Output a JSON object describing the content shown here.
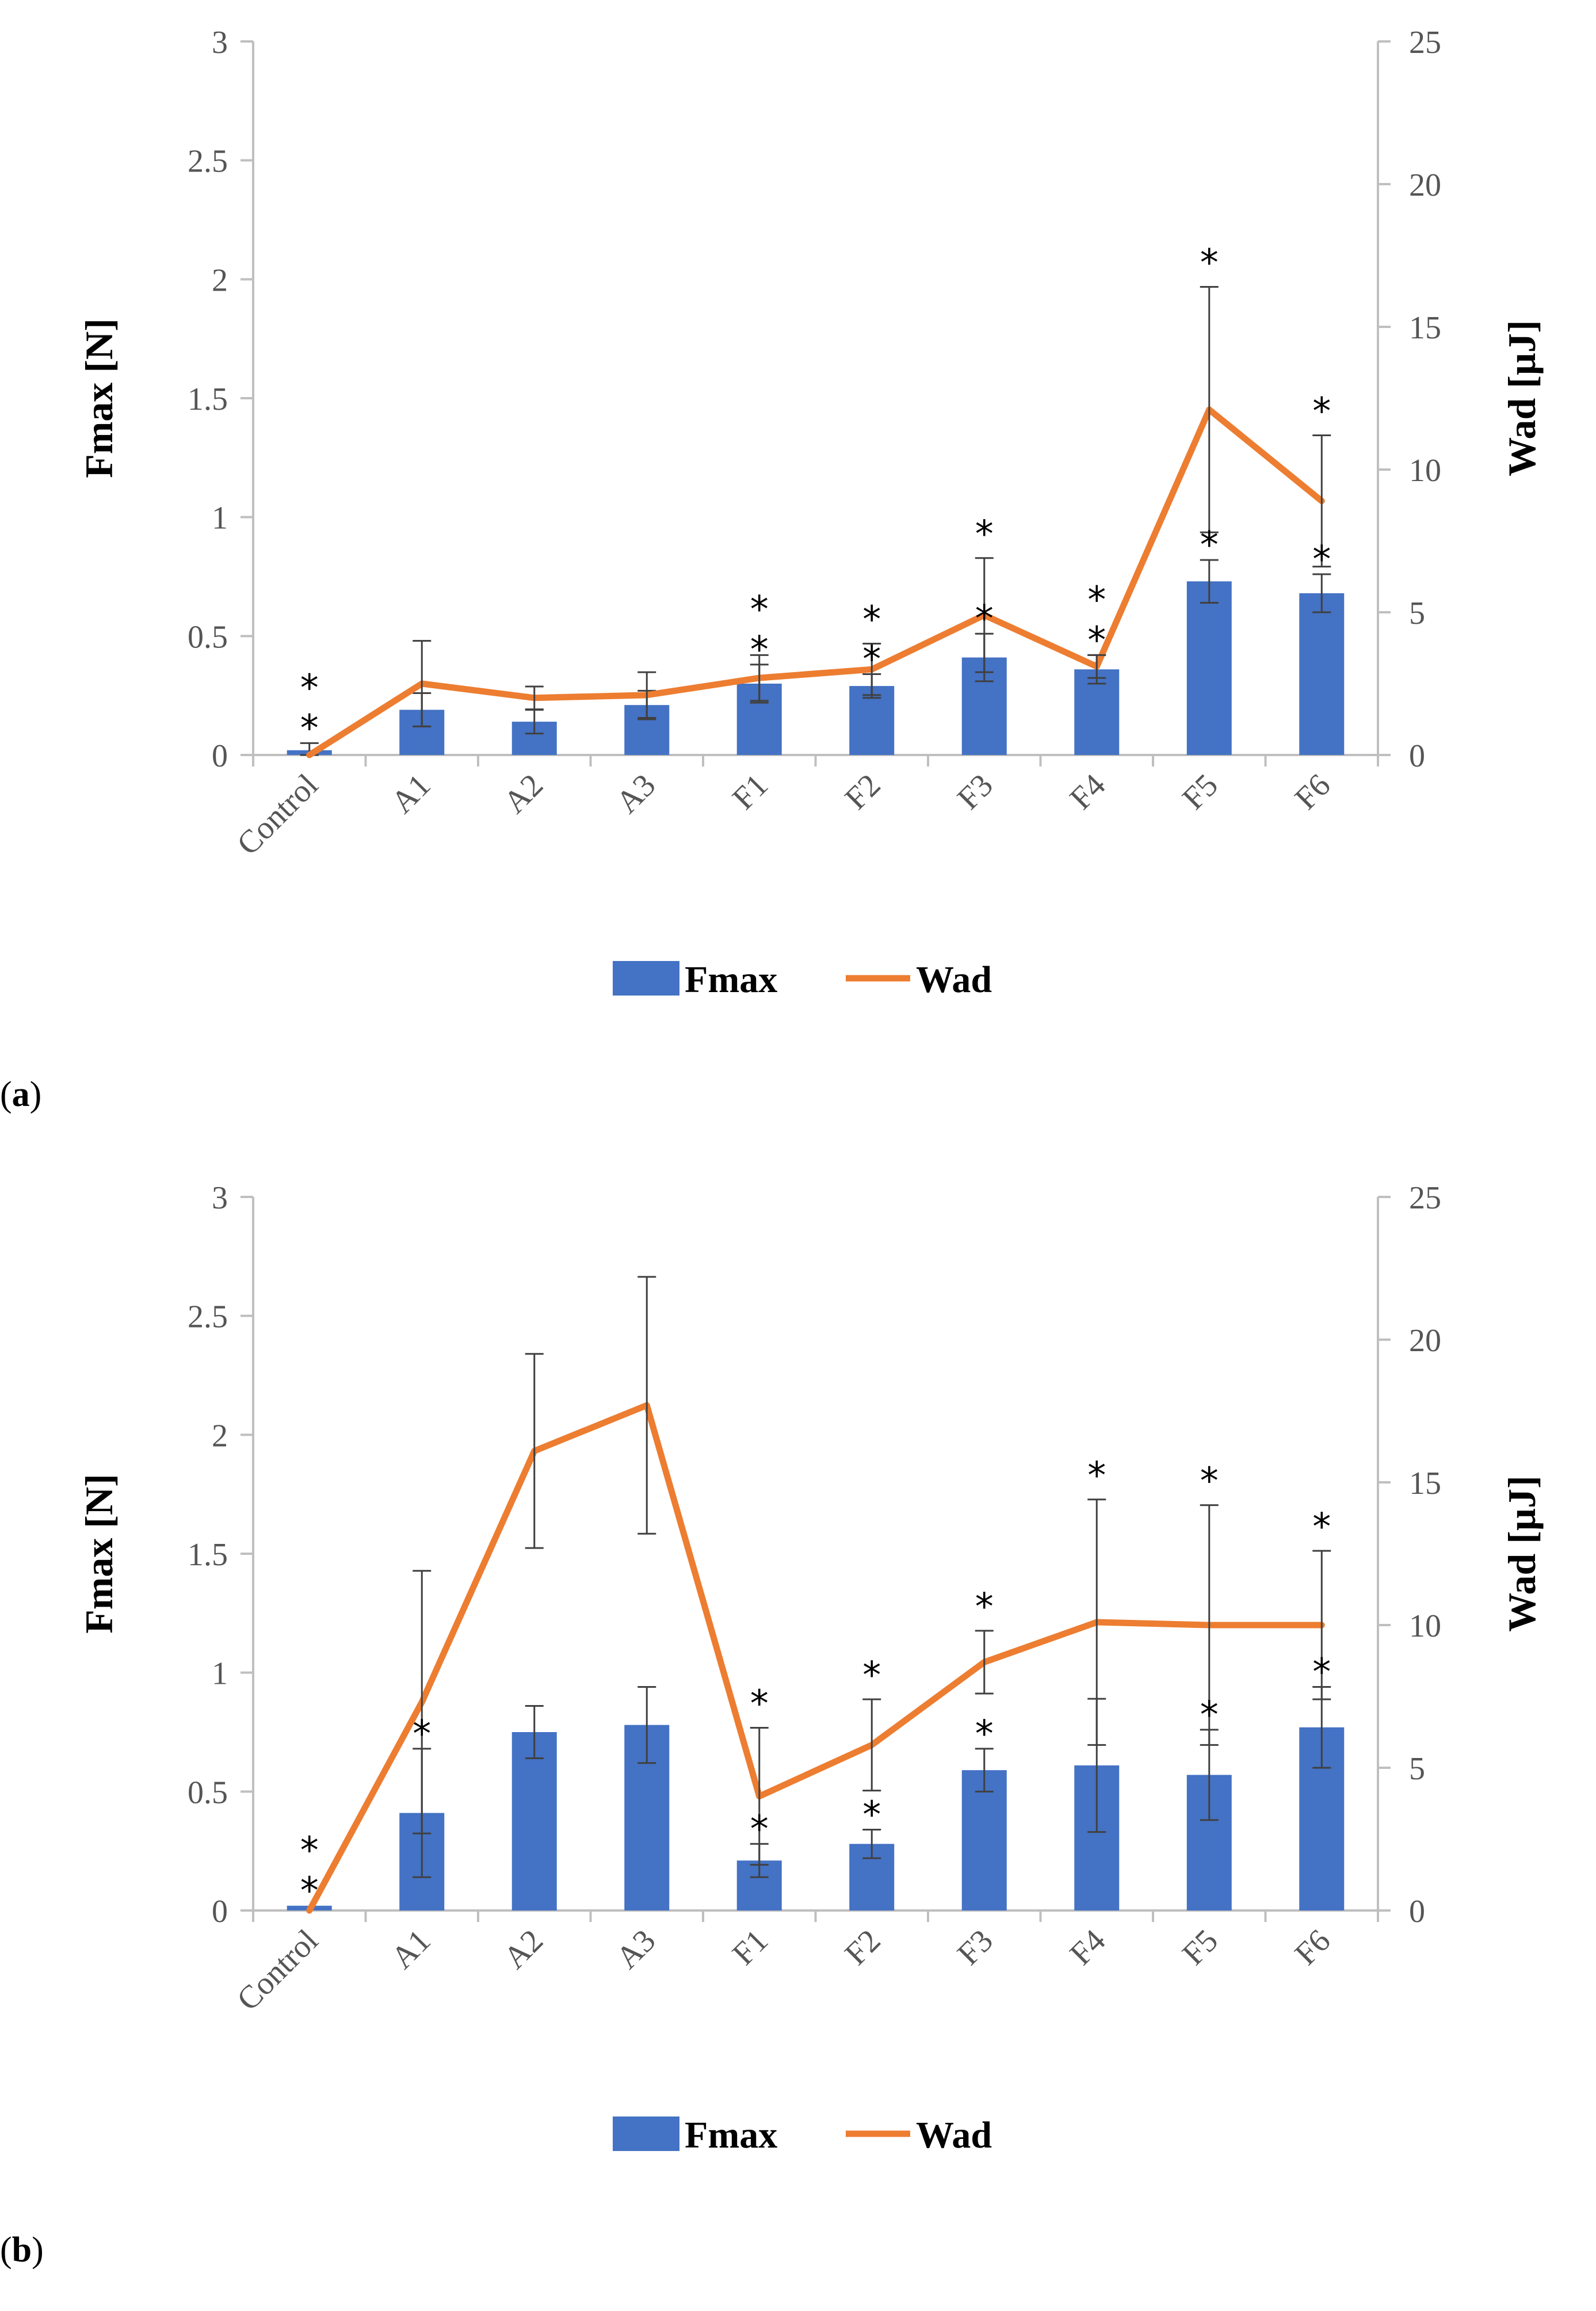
{
  "chart_data": [
    {
      "type": "bar+line",
      "panel_label": "a",
      "categories": [
        "Control",
        "A1",
        "A2",
        "A3",
        "F1",
        "F2",
        "F3",
        "F4",
        "F5",
        "F6"
      ],
      "series": [
        {
          "name": "Fmax",
          "type": "bar",
          "axis": "left",
          "color": "#4472C4",
          "values": [
            0.02,
            0.19,
            0.14,
            0.21,
            0.3,
            0.29,
            0.41,
            0.36,
            0.73,
            0.68
          ],
          "errors": [
            0.03,
            0.07,
            0.05,
            0.06,
            0.08,
            0.05,
            0.1,
            0.06,
            0.09,
            0.08
          ],
          "markers": [
            "*",
            "",
            "",
            "",
            "*",
            "*",
            "*",
            "*",
            "*",
            "*"
          ]
        },
        {
          "name": "Wad",
          "type": "line",
          "axis": "right",
          "color": "#ED7D31",
          "values": [
            0.0,
            2.5,
            2.0,
            2.1,
            2.7,
            3.0,
            4.9,
            3.1,
            12.1,
            8.9
          ],
          "errors": [
            0.0,
            1.5,
            0.4,
            0.8,
            0.8,
            0.9,
            2.0,
            0.4,
            4.3,
            2.3
          ],
          "markers": [
            "*",
            "",
            "",
            "",
            "*",
            "*",
            "*",
            "*",
            "*",
            "*"
          ]
        }
      ],
      "ylabel": "Fmax [N]",
      "y2label": "Wad [µJ]",
      "ylim": [
        0,
        3
      ],
      "y2lim": [
        0,
        25
      ],
      "yticks": [
        "0",
        "0.5",
        "1",
        "1.5",
        "2",
        "2.5",
        "3"
      ],
      "y2ticks": [
        "0",
        "5",
        "10",
        "15",
        "20",
        "25"
      ],
      "legend": [
        "Fmax",
        "Wad"
      ]
    },
    {
      "type": "bar+line",
      "panel_label": "b",
      "categories": [
        "Control",
        "A1",
        "A2",
        "A3",
        "F1",
        "F2",
        "F3",
        "F4",
        "F5",
        "F6"
      ],
      "series": [
        {
          "name": "Fmax",
          "type": "bar",
          "axis": "left",
          "color": "#4472C4",
          "values": [
            0.02,
            0.41,
            0.75,
            0.78,
            0.21,
            0.28,
            0.59,
            0.61,
            0.57,
            0.77
          ],
          "errors": [
            0.0,
            0.27,
            0.11,
            0.16,
            0.07,
            0.06,
            0.09,
            0.28,
            0.19,
            0.17
          ],
          "markers": [
            "*",
            "*",
            "",
            "",
            "*",
            "*",
            "*",
            "",
            "*",
            "*"
          ]
        },
        {
          "name": "Wad",
          "type": "line",
          "axis": "right",
          "color": "#ED7D31",
          "values": [
            0.0,
            7.3,
            16.1,
            17.7,
            4.0,
            5.8,
            8.7,
            10.1,
            10.0,
            10.0
          ],
          "errors": [
            0.0,
            4.6,
            3.4,
            4.5,
            2.4,
            1.6,
            1.1,
            4.3,
            4.2,
            2.6
          ],
          "markers": [
            "*",
            "",
            "",
            "",
            "*",
            "*",
            "*",
            "*",
            "*",
            "*"
          ]
        }
      ],
      "ylabel": "Fmax [N]",
      "y2label": "Wad [µJ]",
      "ylim": [
        0,
        3
      ],
      "y2lim": [
        0,
        25
      ],
      "yticks": [
        "0",
        "0.5",
        "1",
        "1.5",
        "2",
        "2.5",
        "3"
      ],
      "y2ticks": [
        "0",
        "5",
        "10",
        "15",
        "20",
        "25"
      ],
      "legend": [
        "Fmax",
        "Wad"
      ]
    }
  ]
}
